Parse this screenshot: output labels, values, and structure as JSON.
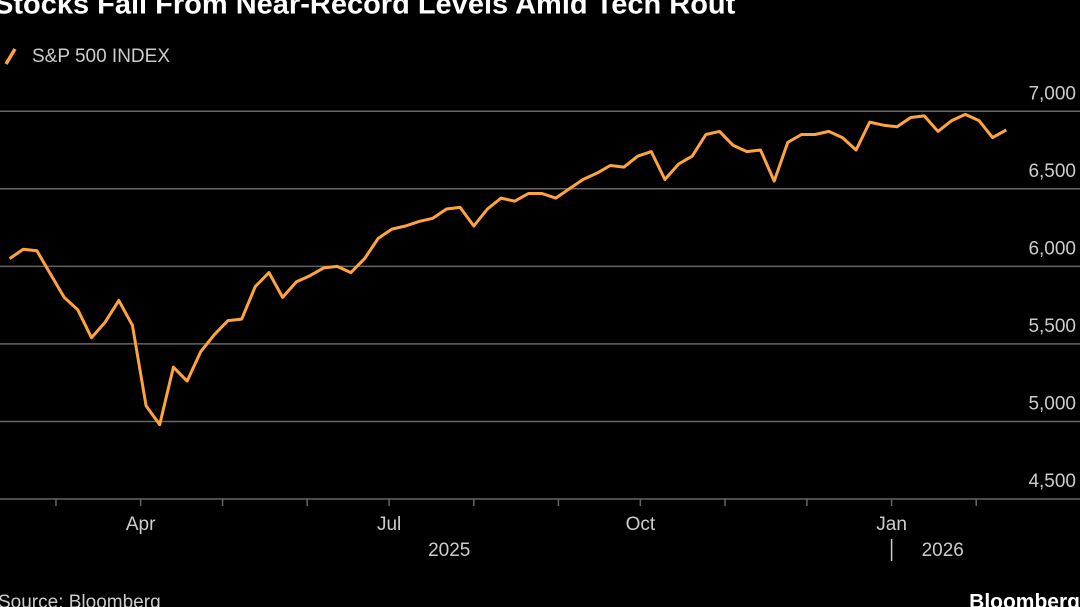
{
  "chart_data": {
    "type": "line",
    "title": "Stocks Fall From Near-Record Levels Amid Tech Rout",
    "series": [
      {
        "name": "S&P 500 INDEX",
        "color": "#ffa43d",
        "values": [
          6050,
          6110,
          6100,
          5950,
          5800,
          5720,
          5540,
          5640,
          5780,
          5620,
          5100,
          4980,
          5350,
          5260,
          5450,
          5560,
          5650,
          5660,
          5870,
          5960,
          5800,
          5900,
          5940,
          5990,
          6000,
          5960,
          6050,
          6180,
          6240,
          6260,
          6290,
          6310,
          6370,
          6380,
          6260,
          6370,
          6440,
          6420,
          6470,
          6470,
          6440,
          6500,
          6560,
          6600,
          6650,
          6640,
          6710,
          6740,
          6560,
          6660,
          6710,
          6850,
          6870,
          6780,
          6740,
          6750,
          6550,
          6800,
          6850,
          6850,
          6870,
          6830,
          6750,
          6930,
          6910,
          6900,
          6960,
          6970,
          6870,
          6940,
          6980,
          6940,
          6830,
          6880
        ]
      }
    ],
    "xlim": [
      -0.7,
      78.4
    ],
    "xticks": [
      3.4,
      {
        "value": 9.6,
        "label": "Apr"
      },
      15.6,
      21.8,
      {
        "value": 27.8,
        "label": "Jul"
      },
      34,
      40.2,
      {
        "value": 46.2,
        "label": "Oct"
      },
      52.4,
      58.4,
      {
        "value": 64.6,
        "label": "Jan"
      },
      70.8
    ],
    "year_labels": [
      {
        "value": 32.2,
        "label": "2025"
      },
      {
        "value": 64.6,
        "label": "2026"
      }
    ],
    "ylim": [
      4500,
      7150
    ],
    "yticks": [
      {
        "value": 4500,
        "label": "4,500"
      },
      {
        "value": 5000,
        "label": "5,000"
      },
      {
        "value": 5500,
        "label": "5,500"
      },
      {
        "value": 6000,
        "label": "6,000"
      },
      {
        "value": 6500,
        "label": "6,500"
      },
      {
        "value": 7000,
        "label": "7,000"
      }
    ],
    "grid": true,
    "source": "Source: Bloomberg",
    "brand": "Bloomberg"
  }
}
